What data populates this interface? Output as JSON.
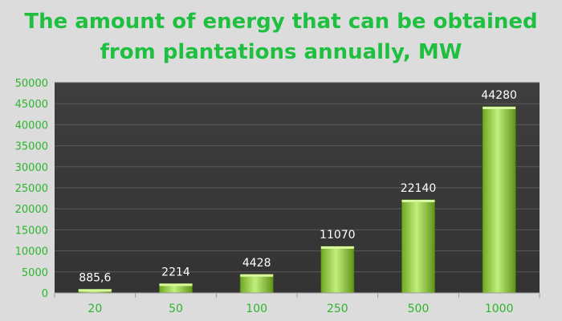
{
  "title_line1": "The amount of energy that can be obtained",
  "title_line2": "from plantations annually, MW",
  "chart_data": {
    "type": "bar",
    "title": "The amount of energy that can be obtained from plantations annually, MW",
    "categories": [
      "20",
      "50",
      "100",
      "250",
      "500",
      "1000"
    ],
    "values": [
      885.6,
      2214,
      4428,
      11070,
      22140,
      44280
    ],
    "value_labels": [
      "885,6",
      "2214",
      "4428",
      "11070",
      "22140",
      "44280"
    ],
    "ylim": [
      0,
      50000
    ],
    "yticks": [
      0,
      5000,
      10000,
      15000,
      20000,
      25000,
      30000,
      35000,
      40000,
      45000,
      50000
    ],
    "xlabel": "",
    "ylabel": "",
    "grid": true,
    "colors": {
      "bar_light": "#b6e86b",
      "bar_dark": "#5f9418",
      "plot_bg": "#3a3a3a",
      "text": "#2db52d",
      "grid": "#5a5a5a"
    }
  }
}
